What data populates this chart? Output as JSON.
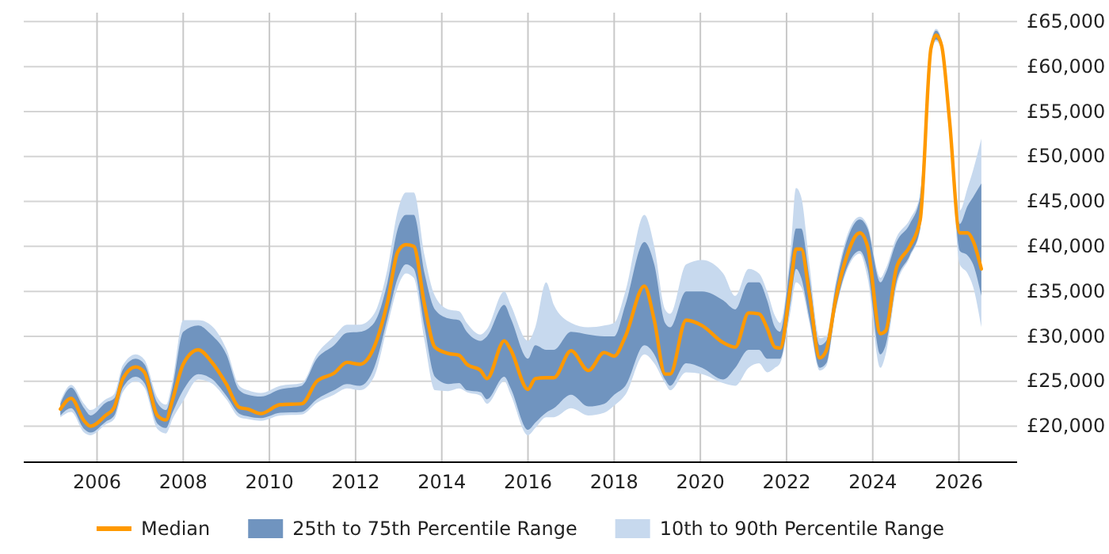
{
  "chart_data": {
    "type": "line",
    "legend": "bottom",
    "grid": true,
    "xlim": [
      2004.3,
      2027.35
    ],
    "xticks": [
      2006,
      2008,
      2010,
      2012,
      2014,
      2016,
      2018,
      2020,
      2022,
      2024,
      2026
    ],
    "ylim": [
      16000,
      66000
    ],
    "yticks": [
      {
        "value": 20000,
        "label": "£20,000"
      },
      {
        "value": 25000,
        "label": "£25,000"
      },
      {
        "value": 30000,
        "label": "£30,000"
      },
      {
        "value": 35000,
        "label": "£35,000"
      },
      {
        "value": 40000,
        "label": "£40,000"
      },
      {
        "value": 45000,
        "label": "£45,000"
      },
      {
        "value": 50000,
        "label": "£50,000"
      },
      {
        "value": 55000,
        "label": "£55,000"
      },
      {
        "value": 60000,
        "label": "£60,000"
      },
      {
        "value": 65000,
        "label": "£65,000"
      }
    ],
    "x": [
      2005.15,
      2005.4,
      2005.7,
      2005.85,
      2006.2,
      2006.4,
      2006.6,
      2006.9,
      2007.1,
      2007.4,
      2007.6,
      2007.75,
      2008.0,
      2008.35,
      2008.65,
      2009.0,
      2009.3,
      2009.5,
      2009.8,
      2010.25,
      2010.75,
      2011.1,
      2011.5,
      2011.8,
      2012.1,
      2012.43,
      2012.74,
      2012.98,
      2013.17,
      2013.35,
      2013.6,
      2013.84,
      2014.15,
      2014.4,
      2014.58,
      2014.9,
      2015.05,
      2015.45,
      2015.6,
      2016.0,
      2016.17,
      2016.42,
      2016.6,
      2017.0,
      2017.4,
      2017.77,
      2018.0,
      2018.26,
      2018.7,
      2018.93,
      2019.18,
      2019.3,
      2019.67,
      2020.04,
      2020.53,
      2020.81,
      2021.12,
      2021.36,
      2021.55,
      2021.73,
      2021.85,
      2022.1,
      2022.22,
      2022.34,
      2022.53,
      2022.77,
      2022.92,
      2023.14,
      2023.39,
      2023.7,
      2023.88,
      2024.18,
      2024.3,
      2024.55,
      2024.86,
      2025.1,
      2025.35,
      2025.47,
      2025.6,
      2025.78,
      2026.02,
      2026.2,
      2026.33,
      2026.52
    ],
    "series": [
      {
        "name": "Median",
        "type": "line",
        "color": "#ff9900",
        "values": [
          21900,
          23100,
          20600,
          20000,
          21200,
          22100,
          25300,
          26600,
          26000,
          21200,
          20700,
          22900,
          26900,
          28500,
          27200,
          24700,
          22100,
          21900,
          21400,
          22400,
          22500,
          25000,
          25900,
          27100,
          26900,
          28800,
          33800,
          39400,
          40200,
          40000,
          33500,
          28800,
          28100,
          27900,
          26900,
          26200,
          25300,
          29500,
          28500,
          24100,
          25300,
          25400,
          25400,
          28400,
          26200,
          28200,
          27800,
          30000,
          35600,
          31800,
          25800,
          25800,
          31800,
          31200,
          29300,
          28800,
          32600,
          32500,
          30900,
          28800,
          28700,
          35900,
          39700,
          39700,
          34700,
          27600,
          28400,
          34100,
          38800,
          41500,
          40000,
          30300,
          30600,
          37600,
          40000,
          42900,
          62000,
          63500,
          62300,
          54100,
          41500,
          41500,
          40600,
          37500
        ]
      },
      {
        "name": "25th to 75th Percentile Range",
        "type": "area",
        "color": "#7094bf",
        "values": [
          null,
          null,
          null,
          null,
          null,
          null,
          null,
          null,
          null,
          null,
          null,
          null,
          null,
          null,
          null,
          null,
          null,
          null,
          null,
          null,
          null,
          null,
          null,
          null,
          null,
          null,
          null,
          null,
          null,
          null,
          null,
          null,
          null,
          null,
          null,
          null,
          null,
          null,
          null,
          null,
          null,
          null,
          null,
          null,
          null,
          null,
          null,
          null,
          null,
          null,
          null,
          null,
          null,
          null,
          null,
          null,
          null,
          null,
          null,
          null,
          null,
          null,
          null,
          null,
          null,
          null,
          null,
          null,
          null,
          null,
          null,
          null,
          null,
          null,
          null,
          null,
          null,
          null,
          null,
          null,
          null,
          null,
          null,
          null
        ],
        "lower": [
          21200,
          22000,
          19700,
          19300,
          20500,
          21200,
          24300,
          25500,
          24800,
          20300,
          19800,
          21500,
          24000,
          25800,
          25300,
          23400,
          21400,
          21100,
          20900,
          21500,
          21600,
          23000,
          24000,
          24700,
          24500,
          26500,
          32000,
          36500,
          38000,
          37500,
          31000,
          25500,
          24700,
          24800,
          24000,
          23800,
          23000,
          25500,
          24200,
          19600,
          20400,
          21500,
          22000,
          23500,
          22200,
          22500,
          23500,
          24500,
          29000,
          28000,
          25200,
          24500,
          27000,
          26500,
          25200,
          26500,
          28500,
          28500,
          27500,
          27500,
          27500,
          34000,
          37500,
          36500,
          32000,
          26500,
          27000,
          33000,
          37500,
          39500,
          37500,
          28000,
          29000,
          36000,
          39000,
          42000,
          61500,
          63000,
          62000,
          53800,
          39500,
          39000,
          38000,
          34500
        ],
        "upper": [
          22500,
          24300,
          22000,
          21200,
          22600,
          23100,
          26300,
          27500,
          26900,
          22600,
          21800,
          24300,
          30500,
          31200,
          30200,
          28000,
          24000,
          23500,
          23300,
          24100,
          24500,
          27500,
          29000,
          30400,
          30500,
          31500,
          36000,
          42000,
          43500,
          43500,
          37000,
          33000,
          32000,
          31800,
          30500,
          29500,
          30000,
          33500,
          32000,
          27500,
          29000,
          28500,
          28500,
          30500,
          30200,
          30000,
          30000,
          33500,
          40500,
          38000,
          31500,
          31000,
          35000,
          35000,
          34000,
          33000,
          36000,
          36000,
          34000,
          31000,
          30500,
          38500,
          42000,
          42000,
          36500,
          29000,
          29500,
          35500,
          40500,
          43000,
          42000,
          36000,
          37000,
          40500,
          42500,
          45500,
          62500,
          64000,
          62800,
          54400,
          42500,
          44500,
          45500,
          47000
        ]
      },
      {
        "name": "10th to 90th Percentile Range",
        "type": "area",
        "color": "#c7d9ee",
        "values": [
          null,
          null,
          null,
          null,
          null,
          null,
          null,
          null,
          null,
          null,
          null,
          null,
          null,
          null,
          null,
          null,
          null,
          null,
          null,
          null,
          null,
          null,
          null,
          null,
          null,
          null,
          null,
          null,
          null,
          null,
          null,
          null,
          null,
          null,
          null,
          null,
          null,
          null,
          null,
          null,
          null,
          null,
          null,
          null,
          null,
          null,
          null,
          null,
          null,
          null,
          null,
          null,
          null,
          null,
          null,
          null,
          null,
          null,
          null,
          null,
          null,
          null,
          null,
          null,
          null,
          null,
          null,
          null,
          null,
          null,
          null,
          null,
          null,
          null,
          null,
          null,
          null,
          null,
          null,
          null,
          null,
          null,
          null,
          null
        ],
        "lower": [
          21000,
          21600,
          19300,
          19000,
          20200,
          20800,
          23800,
          25000,
          24300,
          19700,
          19200,
          20800,
          22800,
          25200,
          24800,
          23000,
          21000,
          20800,
          20600,
          21200,
          21300,
          22600,
          23500,
          24200,
          24000,
          25500,
          31200,
          35500,
          37000,
          36500,
          29500,
          24000,
          23900,
          24200,
          23800,
          23400,
          22500,
          25000,
          23500,
          19000,
          19800,
          21000,
          21000,
          22000,
          21200,
          21500,
          22300,
          23500,
          28000,
          27000,
          24800,
          24000,
          26000,
          25800,
          24800,
          24500,
          26500,
          27000,
          26000,
          26500,
          27000,
          33000,
          36000,
          35500,
          31500,
          26200,
          26700,
          32800,
          37200,
          39200,
          36500,
          26500,
          28000,
          35500,
          38800,
          41800,
          61300,
          62800,
          61800,
          53500,
          38000,
          37000,
          35500,
          31000
        ],
        "upper": [
          22800,
          24600,
          22500,
          21800,
          23000,
          23600,
          26800,
          28000,
          27400,
          23200,
          22400,
          25000,
          31800,
          31800,
          31200,
          28600,
          24500,
          24000,
          23700,
          24500,
          24800,
          28000,
          30000,
          31300,
          31300,
          32500,
          37500,
          44000,
          46000,
          46000,
          39000,
          34500,
          33000,
          32800,
          31500,
          30200,
          30800,
          35000,
          33500,
          29500,
          31000,
          36000,
          33500,
          31500,
          31000,
          31200,
          31500,
          35000,
          43500,
          40000,
          33000,
          32500,
          38000,
          38500,
          37000,
          34500,
          37500,
          37000,
          35000,
          32300,
          31500,
          40000,
          46500,
          45500,
          38000,
          29800,
          30000,
          36000,
          41000,
          43300,
          42300,
          36500,
          37500,
          41000,
          43000,
          45800,
          62700,
          64200,
          63000,
          54700,
          44000,
          46500,
          48500,
          52000
        ]
      }
    ]
  }
}
